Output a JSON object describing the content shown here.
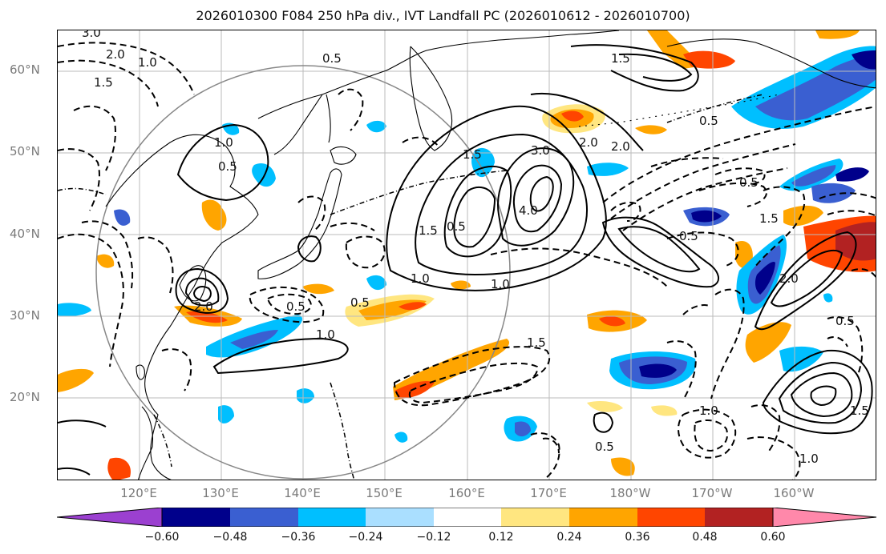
{
  "title": "2026010300 F084 250 hPa div., IVT Landfall PC (2026010612 - 2026010700)",
  "lat_labels": [
    "60°N",
    "50°N",
    "40°N",
    "30°N",
    "20°N"
  ],
  "lon_labels": [
    "120°E",
    "130°E",
    "140°E",
    "150°E",
    "160°E",
    "170°E",
    "180°W",
    "170°W",
    "160°W"
  ],
  "colorbar": {
    "tick_labels": [
      "−0.60",
      "−0.48",
      "−0.36",
      "−0.24",
      "−0.12",
      "0.12",
      "0.24",
      "0.36",
      "0.48",
      "0.60"
    ],
    "colors": [
      "#9b40d0",
      "#00008b",
      "#3a5fd1",
      "#00bfff",
      "#aadfff",
      "#ffffff",
      "#ffe680",
      "#ffa500",
      "#ff4500",
      "#b22222",
      "#ff88aa"
    ]
  },
  "contour_labels": [
    "3.0",
    "2.0",
    "1.5",
    "1.0",
    "0.5",
    "0.5",
    "1.0",
    "1.5",
    "2.0",
    "3.0",
    "4.0",
    "1.0",
    "1.5",
    "0.5",
    "2.0",
    "0.5",
    "1.0",
    "0.5",
    "1.5",
    "2.0",
    "1.5",
    "0.5",
    "1.0",
    "0.5",
    "0.5",
    "1.5",
    "2.0",
    "0.5",
    "1.0",
    "1.5",
    "0.5",
    "1.0"
  ]
}
